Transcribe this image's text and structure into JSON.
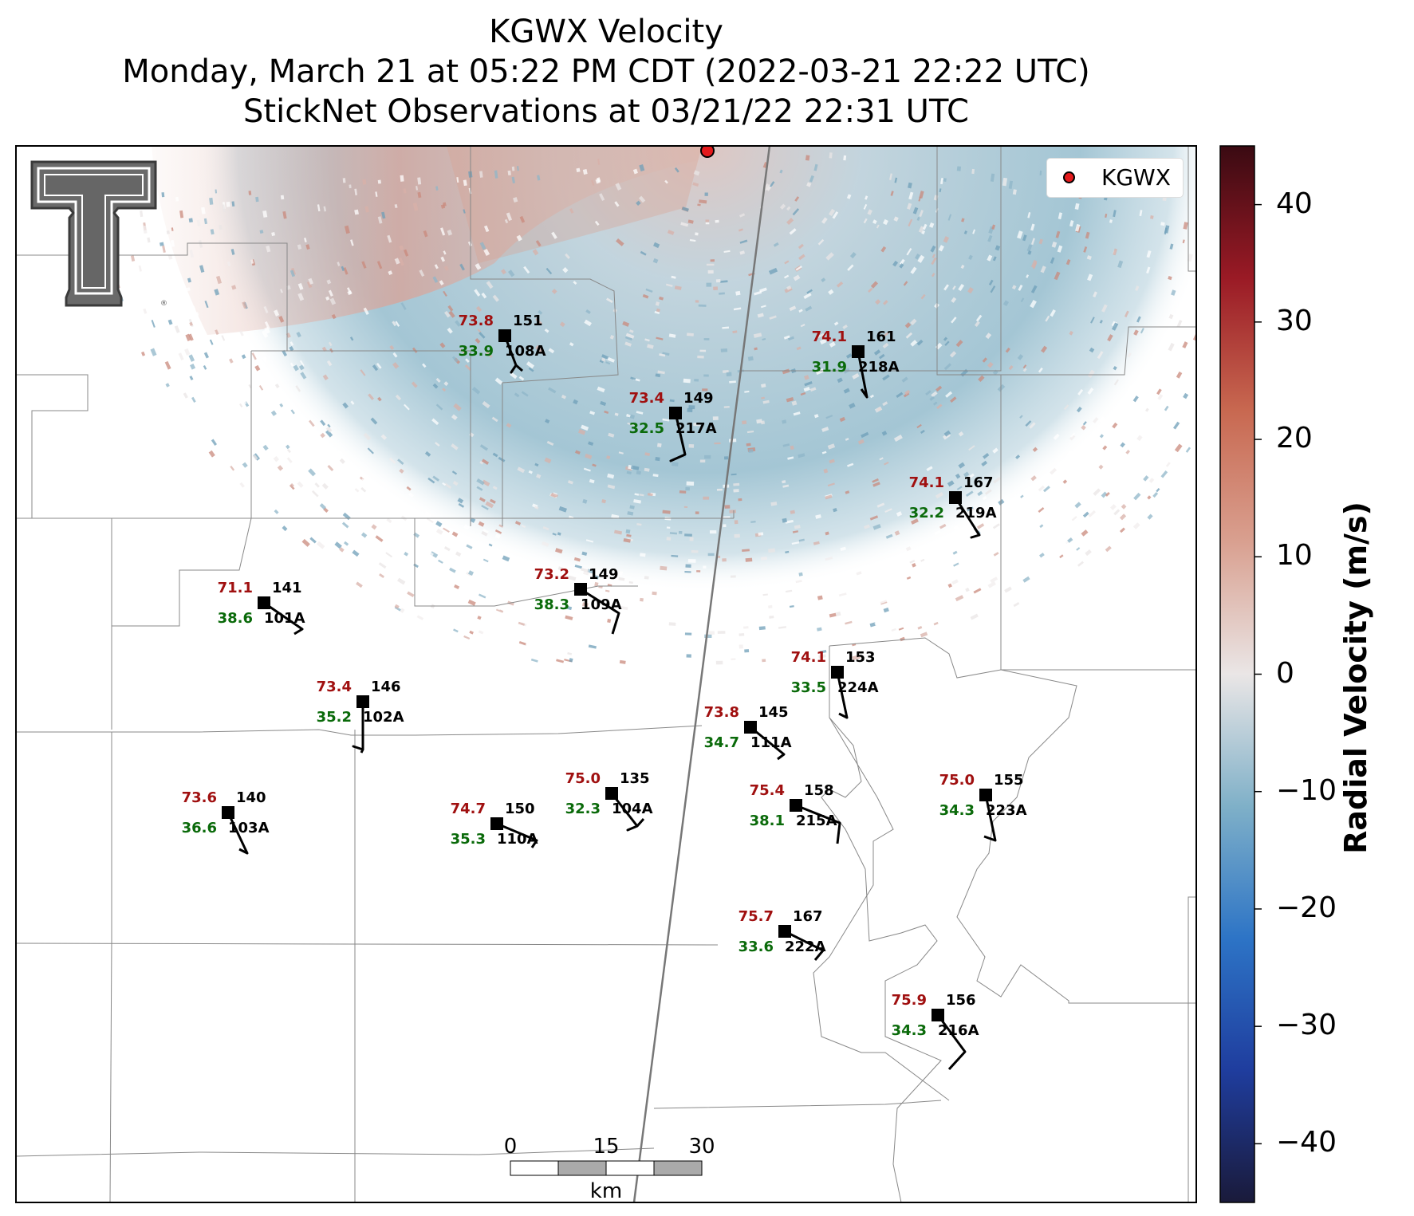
{
  "title": {
    "line1": "KGWX Velocity",
    "line2": "Monday, March 21 at 05:22 PM CDT (2022-03-21 22:22 UTC)",
    "line3": "StickNet Observations at 03/21/22 22:31 UTC"
  },
  "legend": {
    "label": "KGWX",
    "marker_color": "#e41a1c"
  },
  "colorbar": {
    "label": "Radial Velocity (m/s)",
    "min": -45,
    "max": 45,
    "ticks": [
      {
        "value": 40,
        "label": "40"
      },
      {
        "value": 30,
        "label": "30"
      },
      {
        "value": 20,
        "label": "20"
      },
      {
        "value": 10,
        "label": "10"
      },
      {
        "value": 0,
        "label": "0"
      },
      {
        "value": -10,
        "label": "−10"
      },
      {
        "value": -20,
        "label": "−20"
      },
      {
        "value": -30,
        "label": "−30"
      },
      {
        "value": -40,
        "label": "−40"
      }
    ],
    "colors": [
      "#1a1a3a",
      "#1f3d9e",
      "#2d74c6",
      "#7fb0c8",
      "#eae6e6",
      "#d9a090",
      "#c86850",
      "#9a1a25",
      "#3a0a12"
    ]
  },
  "scale_bar": {
    "labels": [
      "0",
      "15",
      "30"
    ],
    "unit": "km"
  },
  "logo": {
    "name": "Texas Tech Double T"
  },
  "stations": [
    {
      "id": "108A",
      "temp": "73.8",
      "dew": "33.9",
      "num": "151"
    },
    {
      "id": "218A",
      "temp": "74.1",
      "dew": "31.9",
      "num": "161"
    },
    {
      "id": "217A",
      "temp": "73.4",
      "dew": "32.5",
      "num": "149"
    },
    {
      "id": "219A",
      "temp": "74.1",
      "dew": "32.2",
      "num": "167"
    },
    {
      "id": "101A",
      "temp": "71.1",
      "dew": "38.6",
      "num": "141"
    },
    {
      "id": "109A",
      "temp": "73.2",
      "dew": "38.3",
      "num": "149"
    },
    {
      "id": "224A",
      "temp": "74.1",
      "dew": "33.5",
      "num": "153"
    },
    {
      "id": "102A",
      "temp": "73.4",
      "dew": "35.2",
      "num": "146"
    },
    {
      "id": "111A",
      "temp": "73.8",
      "dew": "34.7",
      "num": "145"
    },
    {
      "id": "104A",
      "temp": "75.0",
      "dew": "32.3",
      "num": "135"
    },
    {
      "id": "215A",
      "temp": "75.4",
      "dew": "38.1",
      "num": "158"
    },
    {
      "id": "223A",
      "temp": "75.0",
      "dew": "34.3",
      "num": "155"
    },
    {
      "id": "103A",
      "temp": "73.6",
      "dew": "36.6",
      "num": "140"
    },
    {
      "id": "110A",
      "temp": "74.7",
      "dew": "35.3",
      "num": "150"
    },
    {
      "id": "222A",
      "temp": "75.7",
      "dew": "33.6",
      "num": "167"
    },
    {
      "id": "216A",
      "temp": "75.9",
      "dew": "34.3",
      "num": "156"
    }
  ]
}
